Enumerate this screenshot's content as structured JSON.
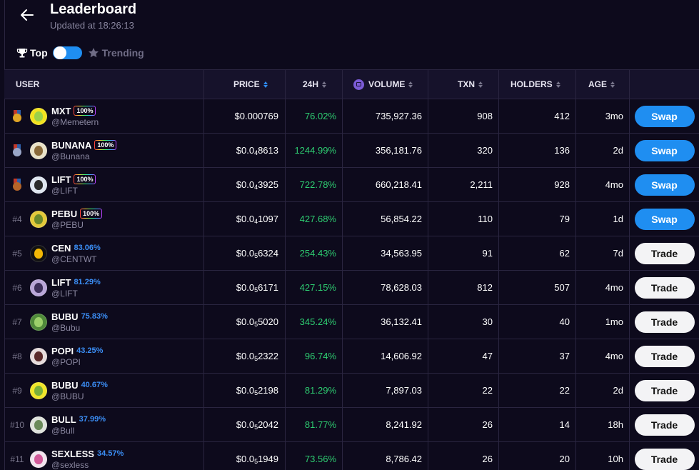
{
  "header": {
    "title": "Leaderboard",
    "updated": "Updated at 18:26:13"
  },
  "toggle": {
    "top_label": "Top",
    "trending_label": "Trending",
    "selected": "Top"
  },
  "columns": {
    "user": "USER",
    "price": "PRICE",
    "h24": "24H",
    "volume": "VOLUME",
    "txn": "TXN",
    "holders": "HOLDERS",
    "age": "AGE"
  },
  "rows": [
    {
      "rank": "",
      "medal": "gold",
      "name": "MXT",
      "badge": "100%",
      "pct": "",
      "handle": "@Memetern",
      "price_pre": "$0.000769",
      "price_sub": "",
      "price_post": "",
      "change": "76.02%",
      "volume": "735,927.36",
      "txn": "908",
      "holders": "412",
      "age": "3mo",
      "action": "Swap",
      "avatar_color": "#f2e21f",
      "avatar_inner": "#9bd04a"
    },
    {
      "rank": "",
      "medal": "silver",
      "name": "BUNANA",
      "badge": "100%",
      "pct": "",
      "handle": "@Bunana",
      "price_pre": "$0.0",
      "price_sub": "4",
      "price_post": "8613",
      "change": "1244.99%",
      "volume": "356,181.76",
      "txn": "320",
      "holders": "136",
      "age": "2d",
      "action": "Swap",
      "avatar_color": "#e9e2c8",
      "avatar_inner": "#8a6a3a"
    },
    {
      "rank": "",
      "medal": "bronze",
      "name": "LIFT",
      "badge": "100%",
      "pct": "",
      "handle": "@LIFT",
      "price_pre": "$0.0",
      "price_sub": "4",
      "price_post": "3925",
      "change": "722.78%",
      "volume": "660,218.41",
      "txn": "2,211",
      "holders": "928",
      "age": "4mo",
      "action": "Swap",
      "avatar_color": "#dfe6f0",
      "avatar_inner": "#2b2b2b"
    },
    {
      "rank": "#4",
      "medal": "",
      "name": "PEBU",
      "badge": "100%",
      "pct": "",
      "handle": "@PEBU",
      "price_pre": "$0.0",
      "price_sub": "4",
      "price_post": "1097",
      "change": "427.68%",
      "volume": "56,854.22",
      "txn": "110",
      "holders": "79",
      "age": "1d",
      "action": "Swap",
      "avatar_color": "#e3c93a",
      "avatar_inner": "#6b8a2c"
    },
    {
      "rank": "#5",
      "medal": "",
      "name": "CEN",
      "badge": "",
      "pct": "83.06%",
      "handle": "@CENTWT",
      "price_pre": "$0.0",
      "price_sub": "5",
      "price_post": "6324",
      "change": "254.43%",
      "volume": "34,563.95",
      "txn": "91",
      "holders": "62",
      "age": "7d",
      "action": "Trade",
      "avatar_color": "#111111",
      "avatar_inner": "#f2b705"
    },
    {
      "rank": "#6",
      "medal": "",
      "name": "LIFT",
      "badge": "",
      "pct": "81.29%",
      "handle": "@LIFT",
      "price_pre": "$0.0",
      "price_sub": "5",
      "price_post": "6171",
      "change": "427.15%",
      "volume": "78,628.03",
      "txn": "812",
      "holders": "507",
      "age": "4mo",
      "action": "Trade",
      "avatar_color": "#b9a6d8",
      "avatar_inner": "#3d2f5a"
    },
    {
      "rank": "#7",
      "medal": "",
      "name": "BUBU",
      "badge": "",
      "pct": "75.83%",
      "handle": "@Bubu",
      "price_pre": "$0.0",
      "price_sub": "5",
      "price_post": "5020",
      "change": "345.24%",
      "volume": "36,132.41",
      "txn": "30",
      "holders": "40",
      "age": "1mo",
      "action": "Trade",
      "avatar_color": "#4f8a3a",
      "avatar_inner": "#9bd06a"
    },
    {
      "rank": "#8",
      "medal": "",
      "name": "POPI",
      "badge": "",
      "pct": "43.25%",
      "handle": "@POPI",
      "price_pre": "$0.0",
      "price_sub": "5",
      "price_post": "2322",
      "change": "96.74%",
      "volume": "14,606.92",
      "txn": "47",
      "holders": "37",
      "age": "4mo",
      "action": "Trade",
      "avatar_color": "#e6dcdc",
      "avatar_inner": "#5a2a2a"
    },
    {
      "rank": "#9",
      "medal": "",
      "name": "BUBU",
      "badge": "",
      "pct": "40.67%",
      "handle": "@BUBU",
      "price_pre": "$0.0",
      "price_sub": "5",
      "price_post": "2198",
      "change": "81.29%",
      "volume": "7,897.03",
      "txn": "22",
      "holders": "22",
      "age": "2d",
      "action": "Trade",
      "avatar_color": "#f0e62a",
      "avatar_inner": "#7ab03a"
    },
    {
      "rank": "#10",
      "medal": "",
      "name": "BULL",
      "badge": "",
      "pct": "37.99%",
      "handle": "@Bull",
      "price_pre": "$0.0",
      "price_sub": "5",
      "price_post": "2042",
      "change": "81.77%",
      "volume": "8,241.92",
      "txn": "26",
      "holders": "14",
      "age": "18h",
      "action": "Trade",
      "avatar_color": "#dfe3dc",
      "avatar_inner": "#6a8a5a"
    },
    {
      "rank": "#11",
      "medal": "",
      "name": "SEXLESS",
      "badge": "",
      "pct": "34.57%",
      "handle": "@sexless",
      "price_pre": "$0.0",
      "price_sub": "5",
      "price_post": "1949",
      "change": "73.56%",
      "volume": "8,786.42",
      "txn": "26",
      "holders": "20",
      "age": "10h",
      "action": "Trade",
      "avatar_color": "#f2e4ee",
      "avatar_inner": "#d25a9a"
    }
  ],
  "colors": {
    "background": "#0d0a1c",
    "header_row": "#16122b",
    "accent_blue": "#1f8ef1",
    "positive": "#2ecc71",
    "gold": "#e0a526",
    "silver": "#9aa6c8",
    "bronze": "#b5652a"
  },
  "icons": {
    "back": "arrow-left-icon",
    "top": "trophy-icon",
    "trending": "star-icon",
    "volume": "volume-coin-icon",
    "sort": "sort-arrows-icon"
  }
}
